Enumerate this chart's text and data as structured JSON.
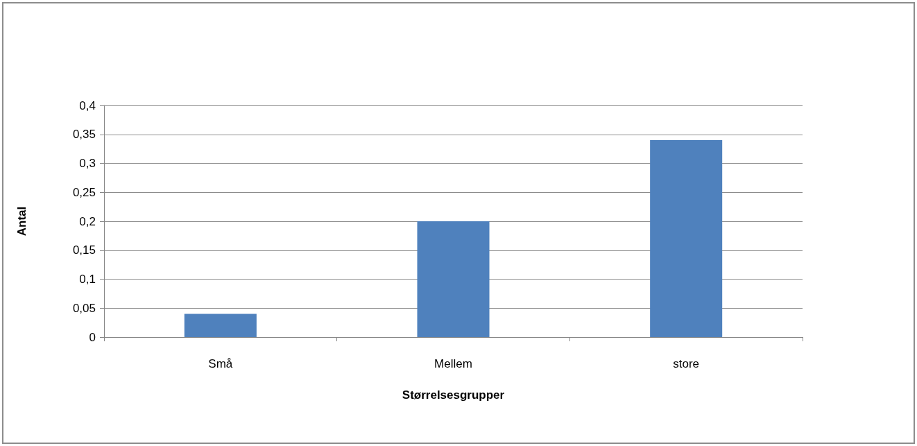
{
  "chart_data": {
    "type": "bar",
    "xlabel": "Størrelsesgrupper",
    "ylabel": "Antal",
    "categories": [
      "Små",
      "Mellem",
      "store"
    ],
    "values": [
      0.04,
      0.2,
      0.34
    ],
    "color": "#4f81bd",
    "ylim": [
      0,
      0.4
    ],
    "yticks": [
      0,
      {
        "value": 0.05,
        "label": "0,05"
      },
      {
        "value": 0.1,
        "label": "0,1"
      },
      {
        "value": 0.15,
        "label": "0,15"
      },
      {
        "value": 0.2,
        "label": "0,2"
      },
      {
        "value": 0.25,
        "label": "0,25"
      },
      {
        "value": 0.3,
        "label": "0,3"
      },
      {
        "value": 0.35,
        "label": "0,35"
      },
      {
        "value": 0.4,
        "label": "0,4"
      }
    ],
    "grid": "y"
  }
}
